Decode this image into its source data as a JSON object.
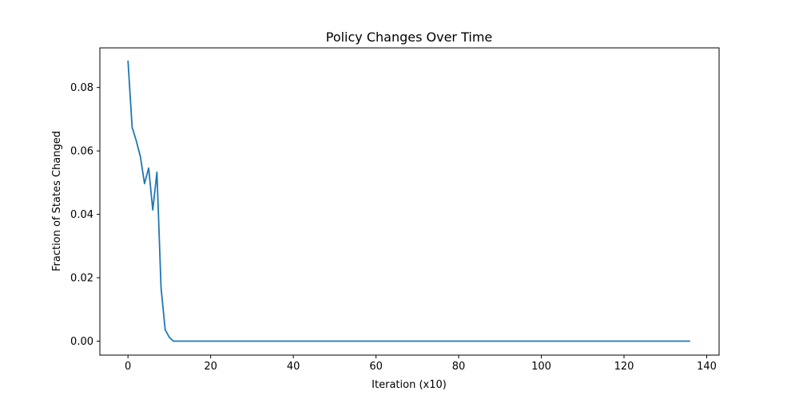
{
  "chart_data": {
    "type": "line",
    "title": "Policy Changes Over Time",
    "xlabel": "Iteration (x10)",
    "ylabel": "Fraction of States Changed",
    "xlim": [
      -6.8,
      143
    ],
    "ylim": [
      -0.0044,
      0.0925
    ],
    "x_ticks": [
      0,
      20,
      40,
      60,
      80,
      100,
      120,
      140
    ],
    "y_ticks": [
      0.0,
      0.02,
      0.04,
      0.06,
      0.08
    ],
    "x_tick_labels": [
      "0",
      "20",
      "40",
      "60",
      "80",
      "100",
      "120",
      "140"
    ],
    "y_tick_labels": [
      "0.00",
      "0.02",
      "0.04",
      "0.06",
      "0.08"
    ],
    "grid": false,
    "series": [
      {
        "color": "#1f77b4",
        "x": [
          0,
          1,
          2,
          3,
          4,
          5,
          6,
          7,
          8,
          9,
          10,
          11,
          12,
          136
        ],
        "y": [
          0.0885,
          0.0675,
          0.0632,
          0.0582,
          0.0497,
          0.0546,
          0.0414,
          0.0533,
          0.0168,
          0.0036,
          0.0012,
          0.0,
          0.0,
          0.0
        ]
      }
    ]
  }
}
